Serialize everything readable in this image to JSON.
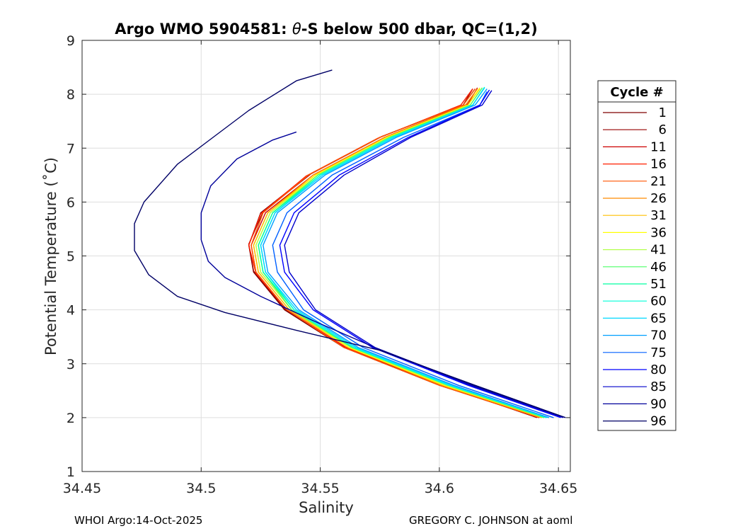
{
  "chart_data": {
    "type": "line",
    "title_prefix": "Argo WMO 5904581: ",
    "title_theta": "θ",
    "title_suffix": "-S below 500 dbar,  QC=(1,2)",
    "xlabel": "Salinity",
    "ylabel": "Potential Temperature (˚C)",
    "xlim": [
      34.45,
      34.655
    ],
    "ylim": [
      1,
      9
    ],
    "xticks": [
      34.45,
      34.5,
      34.55,
      34.6,
      34.65
    ],
    "xtick_labels": [
      "34.45",
      "34.5",
      "34.55",
      "34.6",
      "34.65"
    ],
    "yticks": [
      1,
      2,
      3,
      4,
      5,
      6,
      7,
      8,
      9
    ],
    "ytick_labels": [
      "1",
      "2",
      "3",
      "4",
      "5",
      "6",
      "7",
      "8",
      "9"
    ],
    "grid": true,
    "legend_title": "Cycle #",
    "legend_position": "outside-right",
    "series": [
      {
        "name": "1",
        "color": "#7f0000",
        "values": [
          [
            34.642,
            2.0
          ],
          [
            34.6,
            2.6
          ],
          [
            34.56,
            3.3
          ],
          [
            34.535,
            4.0
          ],
          [
            34.522,
            4.7
          ],
          [
            34.52,
            5.2
          ],
          [
            34.525,
            5.8
          ],
          [
            34.545,
            6.5
          ],
          [
            34.575,
            7.2
          ],
          [
            34.61,
            7.8
          ],
          [
            34.615,
            8.1
          ]
        ]
      },
      {
        "name": "6",
        "color": "#990000",
        "values": [
          [
            34.641,
            2.0
          ],
          [
            34.6,
            2.62
          ],
          [
            34.56,
            3.32
          ],
          [
            34.535,
            4.02
          ],
          [
            34.522,
            4.72
          ],
          [
            34.52,
            5.22
          ],
          [
            34.526,
            5.82
          ],
          [
            34.546,
            6.52
          ],
          [
            34.576,
            7.22
          ],
          [
            34.61,
            7.8
          ],
          [
            34.614,
            8.1
          ]
        ]
      },
      {
        "name": "11",
        "color": "#cc0000",
        "values": [
          [
            34.642,
            2.0
          ],
          [
            34.6,
            2.61
          ],
          [
            34.56,
            3.31
          ],
          [
            34.536,
            4.0
          ],
          [
            34.523,
            4.7
          ],
          [
            34.521,
            5.2
          ],
          [
            34.527,
            5.8
          ],
          [
            34.547,
            6.5
          ],
          [
            34.577,
            7.2
          ],
          [
            34.612,
            7.82
          ],
          [
            34.616,
            8.12
          ]
        ]
      },
      {
        "name": "16",
        "color": "#ff2000",
        "values": [
          [
            34.643,
            2.01
          ],
          [
            34.601,
            2.62
          ],
          [
            34.561,
            3.3
          ],
          [
            34.536,
            4.0
          ],
          [
            34.523,
            4.68
          ],
          [
            34.52,
            5.2
          ],
          [
            34.525,
            5.78
          ],
          [
            34.544,
            6.48
          ],
          [
            34.574,
            7.18
          ],
          [
            34.609,
            7.8
          ],
          [
            34.614,
            8.1
          ]
        ]
      },
      {
        "name": "21",
        "color": "#ff5500",
        "values": [
          [
            34.642,
            2.0
          ],
          [
            34.6,
            2.6
          ],
          [
            34.56,
            3.3
          ],
          [
            34.536,
            4.0
          ],
          [
            34.523,
            4.7
          ],
          [
            34.521,
            5.2
          ],
          [
            34.526,
            5.8
          ],
          [
            34.545,
            6.5
          ],
          [
            34.575,
            7.2
          ],
          [
            34.61,
            7.8
          ],
          [
            34.615,
            8.1
          ]
        ]
      },
      {
        "name": "26",
        "color": "#ff8a00",
        "values": [
          [
            34.643,
            2.0
          ],
          [
            34.601,
            2.6
          ],
          [
            34.562,
            3.3
          ],
          [
            34.537,
            4.0
          ],
          [
            34.524,
            4.7
          ],
          [
            34.522,
            5.2
          ],
          [
            34.528,
            5.8
          ],
          [
            34.547,
            6.5
          ],
          [
            34.577,
            7.2
          ],
          [
            34.611,
            7.8
          ],
          [
            34.616,
            8.1
          ]
        ]
      },
      {
        "name": "31",
        "color": "#ffbf00",
        "values": [
          [
            34.643,
            2.0
          ],
          [
            34.602,
            2.6
          ],
          [
            34.562,
            3.3
          ],
          [
            34.537,
            4.0
          ],
          [
            34.524,
            4.7
          ],
          [
            34.522,
            5.2
          ],
          [
            34.528,
            5.8
          ],
          [
            34.548,
            6.5
          ],
          [
            34.578,
            7.2
          ],
          [
            34.612,
            7.8
          ],
          [
            34.617,
            8.1
          ]
        ]
      },
      {
        "name": "36",
        "color": "#ffff00",
        "values": [
          [
            34.644,
            2.0
          ],
          [
            34.602,
            2.6
          ],
          [
            34.562,
            3.3
          ],
          [
            34.538,
            4.0
          ],
          [
            34.525,
            4.7
          ],
          [
            34.523,
            5.2
          ],
          [
            34.529,
            5.8
          ],
          [
            34.548,
            6.5
          ],
          [
            34.578,
            7.2
          ],
          [
            34.612,
            7.8
          ],
          [
            34.617,
            8.12
          ]
        ]
      },
      {
        "name": "41",
        "color": "#b2ff4c",
        "values": [
          [
            34.644,
            2.0
          ],
          [
            34.603,
            2.6
          ],
          [
            34.563,
            3.3
          ],
          [
            34.538,
            4.0
          ],
          [
            34.525,
            4.7
          ],
          [
            34.523,
            5.2
          ],
          [
            34.529,
            5.8
          ],
          [
            34.549,
            6.5
          ],
          [
            34.579,
            7.2
          ],
          [
            34.613,
            7.8
          ],
          [
            34.618,
            8.12
          ]
        ]
      },
      {
        "name": "46",
        "color": "#4cff66",
        "values": [
          [
            34.644,
            2.0
          ],
          [
            34.603,
            2.61
          ],
          [
            34.563,
            3.31
          ],
          [
            34.538,
            4.0
          ],
          [
            34.526,
            4.7
          ],
          [
            34.524,
            5.2
          ],
          [
            34.53,
            5.8
          ],
          [
            34.549,
            6.5
          ],
          [
            34.579,
            7.2
          ],
          [
            34.613,
            7.8
          ],
          [
            34.618,
            8.12
          ]
        ]
      },
      {
        "name": "51",
        "color": "#00ffa0",
        "values": [
          [
            34.645,
            2.0
          ],
          [
            34.604,
            2.6
          ],
          [
            34.564,
            3.3
          ],
          [
            34.539,
            4.0
          ],
          [
            34.526,
            4.7
          ],
          [
            34.524,
            5.2
          ],
          [
            34.53,
            5.8
          ],
          [
            34.55,
            6.5
          ],
          [
            34.58,
            7.2
          ],
          [
            34.614,
            7.8
          ],
          [
            34.619,
            8.13
          ]
        ]
      },
      {
        "name": "60",
        "color": "#00ffd8",
        "values": [
          [
            34.645,
            2.0
          ],
          [
            34.604,
            2.6
          ],
          [
            34.564,
            3.3
          ],
          [
            34.539,
            4.0
          ],
          [
            34.527,
            4.7
          ],
          [
            34.525,
            5.2
          ],
          [
            34.531,
            5.8
          ],
          [
            34.55,
            6.5
          ],
          [
            34.58,
            7.2
          ],
          [
            34.614,
            7.8
          ],
          [
            34.619,
            8.13
          ]
        ]
      },
      {
        "name": "65",
        "color": "#00d8ff",
        "values": [
          [
            34.646,
            2.0
          ],
          [
            34.605,
            2.6
          ],
          [
            34.565,
            3.3
          ],
          [
            34.54,
            4.0
          ],
          [
            34.527,
            4.7
          ],
          [
            34.525,
            5.2
          ],
          [
            34.531,
            5.8
          ],
          [
            34.551,
            6.5
          ],
          [
            34.581,
            7.2
          ],
          [
            34.614,
            7.8
          ],
          [
            34.619,
            8.12
          ]
        ]
      },
      {
        "name": "70",
        "color": "#009fff",
        "values": [
          [
            34.646,
            2.0
          ],
          [
            34.606,
            2.6
          ],
          [
            34.566,
            3.3
          ],
          [
            34.541,
            4.0
          ],
          [
            34.528,
            4.7
          ],
          [
            34.526,
            5.2
          ],
          [
            34.532,
            5.8
          ],
          [
            34.552,
            6.5
          ],
          [
            34.582,
            7.2
          ],
          [
            34.615,
            7.8
          ],
          [
            34.62,
            8.1
          ]
        ]
      },
      {
        "name": "75",
        "color": "#0060ff",
        "values": [
          [
            34.648,
            2.0
          ],
          [
            34.608,
            2.6
          ],
          [
            34.568,
            3.3
          ],
          [
            34.543,
            4.0
          ],
          [
            34.532,
            4.7
          ],
          [
            34.53,
            5.2
          ],
          [
            34.536,
            5.8
          ],
          [
            34.555,
            6.5
          ],
          [
            34.585,
            7.2
          ],
          [
            34.617,
            7.8
          ],
          [
            34.62,
            8.05
          ]
        ]
      },
      {
        "name": "80",
        "color": "#0000ff",
        "values": [
          [
            34.651,
            2.0
          ],
          [
            34.612,
            2.6
          ],
          [
            34.572,
            3.3
          ],
          [
            34.547,
            4.0
          ],
          [
            34.535,
            4.7
          ],
          [
            34.533,
            5.2
          ],
          [
            34.539,
            5.8
          ],
          [
            34.558,
            6.5
          ],
          [
            34.587,
            7.2
          ],
          [
            34.617,
            7.8
          ],
          [
            34.621,
            8.08
          ]
        ]
      },
      {
        "name": "85",
        "color": "#0000cc",
        "values": [
          [
            34.652,
            2.0
          ],
          [
            34.613,
            2.6
          ],
          [
            34.573,
            3.3
          ],
          [
            34.548,
            4.0
          ],
          [
            34.537,
            4.7
          ],
          [
            34.535,
            5.2
          ],
          [
            34.541,
            5.8
          ],
          [
            34.56,
            6.5
          ],
          [
            34.588,
            7.2
          ],
          [
            34.618,
            7.8
          ],
          [
            34.622,
            8.07
          ]
        ]
      },
      {
        "name": "90",
        "color": "#00009a",
        "values": [
          [
            34.653,
            2.0
          ],
          [
            34.614,
            2.6
          ],
          [
            34.573,
            3.3
          ],
          [
            34.547,
            3.8
          ],
          [
            34.525,
            4.25
          ],
          [
            34.51,
            4.6
          ],
          [
            34.503,
            4.9
          ],
          [
            34.5,
            5.3
          ],
          [
            34.5,
            5.8
          ],
          [
            34.504,
            6.3
          ],
          [
            34.515,
            6.8
          ],
          [
            34.53,
            7.15
          ],
          [
            34.54,
            7.3
          ]
        ]
      },
      {
        "name": "96",
        "color": "#000066",
        "values": [
          [
            34.653,
            2.0
          ],
          [
            34.615,
            2.6
          ],
          [
            34.575,
            3.25
          ],
          [
            34.54,
            3.62
          ],
          [
            34.51,
            3.95
          ],
          [
            34.49,
            4.25
          ],
          [
            34.478,
            4.65
          ],
          [
            34.472,
            5.1
          ],
          [
            34.472,
            5.6
          ],
          [
            34.476,
            6.0
          ],
          [
            34.49,
            6.7
          ],
          [
            34.505,
            7.2
          ],
          [
            34.52,
            7.7
          ],
          [
            34.54,
            8.25
          ],
          [
            34.555,
            8.45
          ]
        ]
      }
    ]
  },
  "footer": {
    "left": "WHOI Argo:14-Oct-2025",
    "right": "GREGORY C. JOHNSON at aoml"
  }
}
